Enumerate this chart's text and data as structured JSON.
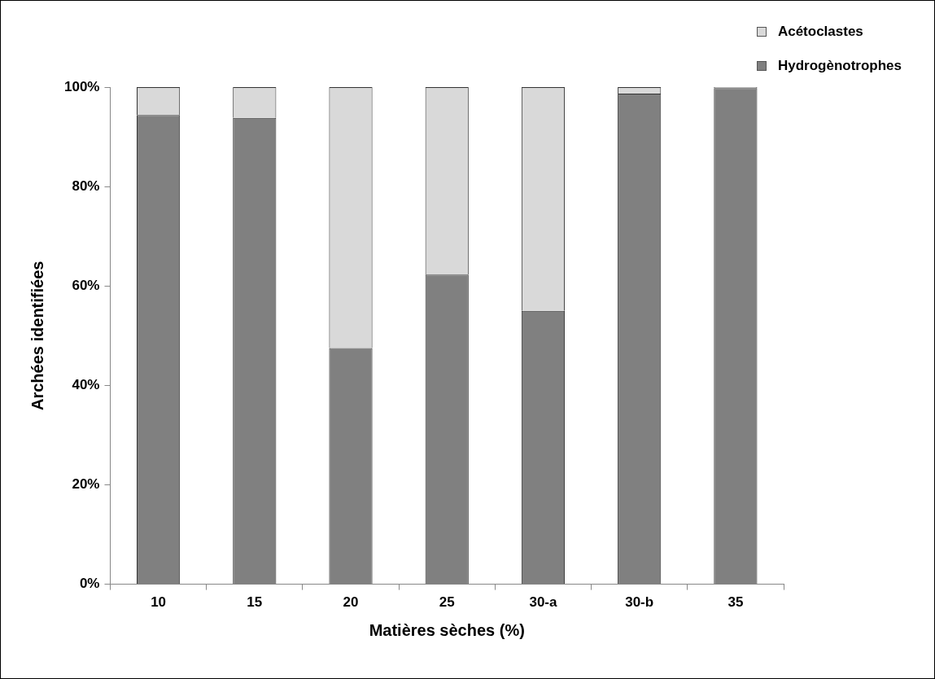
{
  "chart_data": {
    "type": "bar",
    "stacked": true,
    "xlabel": "Matières sèches (%)",
    "ylabel": "Archées identifiées",
    "categories": [
      "10",
      "15",
      "20",
      "25",
      "30-a",
      "30-b",
      "35"
    ],
    "series": [
      {
        "name": "Hydrogènotrophes",
        "color": "#808080",
        "values": [
          94.4,
          93.8,
          47.5,
          62.3,
          55.0,
          98.7,
          99.8
        ]
      },
      {
        "name": "Acétoclastes",
        "color": "#d9d9d9",
        "values": [
          5.6,
          6.2,
          52.5,
          37.7,
          45.0,
          1.3,
          0.2
        ]
      }
    ],
    "ylim": [
      0,
      100
    ],
    "yticks": [
      {
        "value": 0,
        "label": "0%"
      },
      {
        "value": 20,
        "label": "20%"
      },
      {
        "value": 40,
        "label": "40%"
      },
      {
        "value": 60,
        "label": "60%"
      },
      {
        "value": 80,
        "label": "80%"
      },
      {
        "value": 100,
        "label": "100%"
      }
    ],
    "grid": false,
    "legend": "top right"
  }
}
